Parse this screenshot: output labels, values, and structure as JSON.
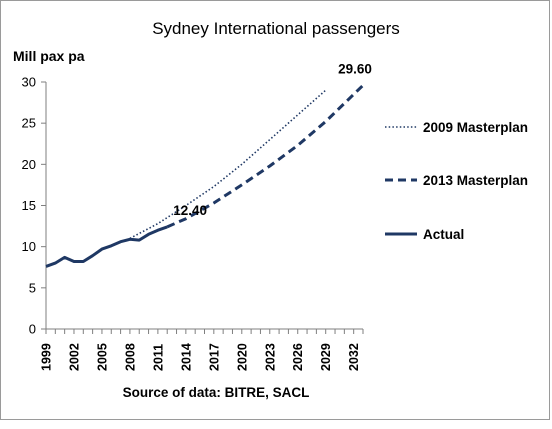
{
  "chart_data": {
    "type": "line",
    "title": "Sydney International passengers",
    "ylabel": "Mill pax pa",
    "xlabel": "",
    "source": "Source of data: BITRE, SACL",
    "ylim": [
      0,
      30
    ],
    "xlim": [
      1999,
      2033
    ],
    "yticks": [
      0,
      5,
      10,
      15,
      20,
      25,
      30
    ],
    "xticks": [
      1999,
      2002,
      2005,
      2008,
      2011,
      2014,
      2017,
      2020,
      2023,
      2026,
      2029,
      2032
    ],
    "grid": false,
    "legend_position": "right",
    "series": [
      {
        "name": "2009 Masterplan",
        "style": "dotted",
        "color": "#1f3864",
        "x": [
          2008,
          2011,
          2014,
          2017,
          2020,
          2023,
          2026,
          2029
        ],
        "values": [
          11.0,
          12.8,
          15.0,
          17.3,
          20.0,
          23.0,
          26.0,
          29.0
        ]
      },
      {
        "name": "2013 Masterplan",
        "style": "dashed",
        "color": "#1f3864",
        "x": [
          2012,
          2014,
          2017,
          2020,
          2023,
          2026,
          2029,
          2033
        ],
        "values": [
          12.4,
          13.4,
          15.3,
          17.5,
          19.8,
          22.3,
          25.2,
          29.6
        ]
      },
      {
        "name": "Actual",
        "style": "solid",
        "color": "#1f3864",
        "x": [
          1999,
          2000,
          2001,
          2002,
          2003,
          2004,
          2005,
          2006,
          2007,
          2008,
          2009,
          2010,
          2011,
          2012
        ],
        "values": [
          7.6,
          8.0,
          8.7,
          8.2,
          8.2,
          8.9,
          9.7,
          10.1,
          10.6,
          10.9,
          10.8,
          11.5,
          12.0,
          12.4
        ]
      }
    ],
    "annotations": [
      {
        "text": "12.40",
        "x": 2012,
        "y": 12.4
      },
      {
        "text": "29.60",
        "x": 2033,
        "y": 29.6
      }
    ]
  }
}
